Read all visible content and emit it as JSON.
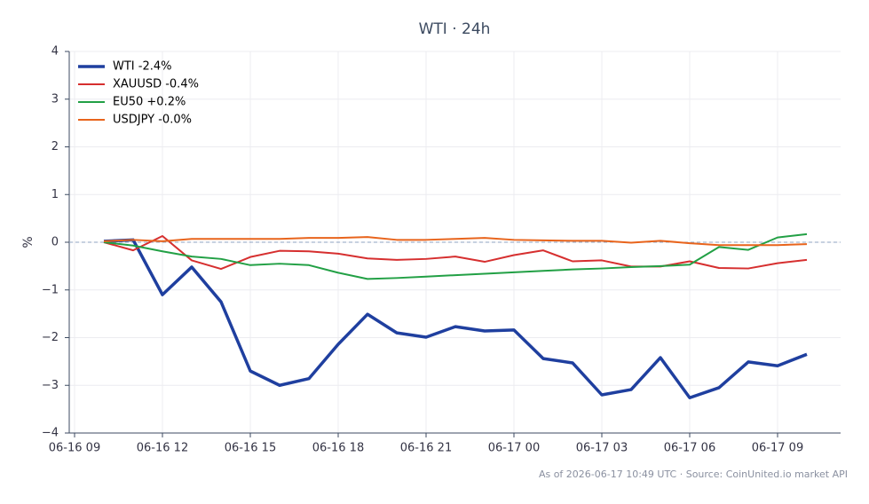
{
  "chart_data": {
    "type": "line",
    "title": "WTI · 24h",
    "ylabel": "%",
    "footer": "As of 2026-06-17 10:49 UTC · Source: CoinUnited.io market API",
    "x": [
      "06-16 10",
      "06-16 11",
      "06-16 12",
      "06-16 13",
      "06-16 14",
      "06-16 15",
      "06-16 16",
      "06-16 17",
      "06-16 18",
      "06-16 19",
      "06-16 20",
      "06-16 21",
      "06-16 22",
      "06-16 23",
      "06-17 00",
      "06-17 01",
      "06-17 02",
      "06-17 03",
      "06-17 04",
      "06-17 05",
      "06-17 06",
      "06-17 07",
      "06-17 08",
      "06-17 09",
      "06-17 10"
    ],
    "series": [
      {
        "name": "WTI -2.4%",
        "color": "#1f3f9f",
        "linewidth": 3.5,
        "values": [
          0.02,
          0.05,
          -1.1,
          -0.52,
          -1.25,
          -2.7,
          -3.0,
          -2.86,
          -2.14,
          -1.51,
          -1.9,
          -1.99,
          -1.77,
          -1.86,
          -1.84,
          -2.44,
          -2.53,
          -3.2,
          -3.09,
          -2.42,
          -3.26,
          -3.05,
          -2.51,
          -2.59,
          -2.35
        ]
      },
      {
        "name": "XAUUSD -0.4%",
        "color": "#d62f2f",
        "linewidth": 2,
        "values": [
          0,
          -0.17,
          0.13,
          -0.38,
          -0.56,
          -0.31,
          -0.18,
          -0.19,
          -0.24,
          -0.34,
          -0.37,
          -0.35,
          -0.3,
          -0.41,
          -0.27,
          -0.17,
          -0.4,
          -0.38,
          -0.51,
          -0.51,
          -0.4,
          -0.54,
          -0.55,
          -0.44,
          -0.37
        ]
      },
      {
        "name": "EU50 +0.2%",
        "color": "#22a045",
        "linewidth": 2,
        "values": [
          0,
          -0.07,
          -0.19,
          -0.3,
          -0.35,
          -0.48,
          -0.45,
          -0.48,
          -0.64,
          -0.77,
          -0.75,
          -0.72,
          -0.69,
          -0.66,
          -0.63,
          -0.6,
          -0.57,
          -0.55,
          -0.52,
          -0.5,
          -0.47,
          -0.1,
          -0.16,
          0.1,
          0.17
        ]
      },
      {
        "name": "USDJPY -0.0%",
        "color": "#e8641c",
        "linewidth": 2,
        "values": [
          0.02,
          0.05,
          0.02,
          0.07,
          0.07,
          0.07,
          0.07,
          0.09,
          0.09,
          0.11,
          0.05,
          0.05,
          0.07,
          0.09,
          0.05,
          0.04,
          0.03,
          0.03,
          -0.01,
          0.03,
          -0.02,
          -0.06,
          -0.06,
          -0.06,
          -0.04
        ]
      }
    ],
    "xlim": [
      "06-16 09",
      "06-17 11"
    ],
    "xticks": [
      "06-16 09",
      "06-16 12",
      "06-16 15",
      "06-16 18",
      "06-16 21",
      "06-17 00",
      "06-17 03",
      "06-17 06",
      "06-17 09"
    ],
    "ylim": [
      -4,
      4
    ],
    "yticks": [
      {
        "value": -4,
        "label": "−4"
      },
      {
        "value": -3,
        "label": "−3"
      },
      {
        "value": -2,
        "label": "−2"
      },
      {
        "value": -1,
        "label": "−1"
      },
      0,
      1,
      2,
      3,
      4
    ],
    "reference_line": 0,
    "grid": true,
    "legend": "upper-left"
  }
}
